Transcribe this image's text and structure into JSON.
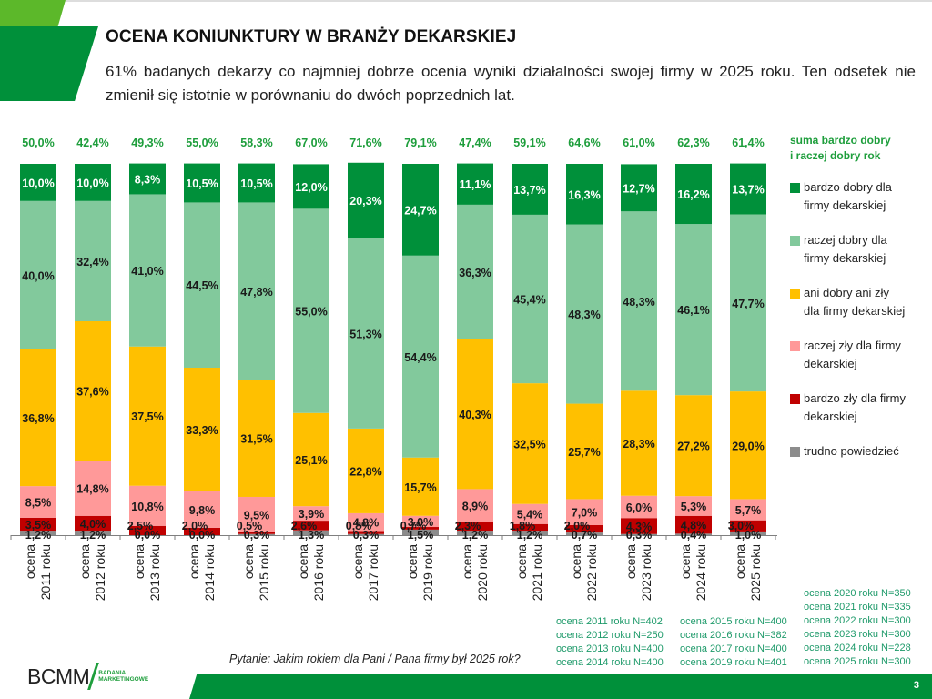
{
  "header": {
    "title": "OCENA KONIUNKTURY W BRANŻY DEKARSKIEJ",
    "subtitle": "61% badanych dekarzy co najmniej dobrze ocenia wyniki działalności swojej firmy w 2025 roku. Ten odsetek nie zmienił się istotnie w porównaniu do dwóch poprzednich lat."
  },
  "chart_data": {
    "type": "bar",
    "stacked": true,
    "orientation": "vertical",
    "unit": "%",
    "categories": [
      "ocena 2011 roku",
      "ocena 2012 roku",
      "ocena 2013 roku",
      "ocena 2014 roku",
      "ocena 2015 roku",
      "ocena 2016 roku",
      "ocena 2017 roku",
      "ocena 2019 roku",
      "ocena 2020 roku",
      "ocena 2021 roku",
      "ocena 2022 roku",
      "ocena 2023 roku",
      "ocena 2024 roku",
      "ocena 2025 roku"
    ],
    "category_lines": [
      [
        "ocena",
        "2011 roku"
      ],
      [
        "ocena",
        "2012 roku"
      ],
      [
        "ocena",
        "2013 roku"
      ],
      [
        "ocena",
        "2014 roku"
      ],
      [
        "ocena",
        "2015 roku"
      ],
      [
        "ocena",
        "2016 roku"
      ],
      [
        "ocena",
        "2017 roku"
      ],
      [
        "ocena",
        "2019 roku"
      ],
      [
        "ocena",
        "2020 roku"
      ],
      [
        "ocena",
        "2021 roku"
      ],
      [
        "ocena",
        "2022 roku"
      ],
      [
        "ocena",
        "2023 roku"
      ],
      [
        "ocena",
        "2024 roku"
      ],
      [
        "ocena",
        "2025 roku"
      ]
    ],
    "series_order_bottom_to_top": [
      "trudno powiedzieć",
      "bardzo zły dla firmy dekarskiej",
      "raczej zły dla firmy dekarskiej",
      "ani dobry ani zły dla firmy dekarskiej",
      "raczej dobry dla firmy dekarskiej",
      "bardzo dobry dla firmy dekarskiej"
    ],
    "series": [
      {
        "name": "bardzo dobry dla firmy dekarskiej",
        "color": "#00903a",
        "label_color": "#ffffff",
        "values": [
          10.0,
          10.0,
          8.3,
          10.5,
          10.5,
          12.0,
          20.3,
          24.7,
          11.1,
          13.7,
          16.3,
          12.7,
          16.2,
          13.7
        ],
        "labels": [
          "10,0%",
          "10,0%",
          "8,3%",
          "10,5%",
          "10,5%",
          "12,0%",
          "20,3%",
          "24,7%",
          "11,1%",
          "13,7%",
          "16,3%",
          "12,7%",
          "16,2%",
          "13,7%"
        ]
      },
      {
        "name": "raczej dobry dla firmy dekarskiej",
        "color": "#82c99c",
        "label_color": "#1a1a1a",
        "values": [
          40.0,
          32.4,
          41.0,
          44.5,
          47.8,
          55.0,
          51.3,
          54.4,
          36.3,
          45.4,
          48.3,
          48.3,
          46.1,
          47.7
        ],
        "labels": [
          "40,0%",
          "32,4%",
          "41,0%",
          "44,5%",
          "47,8%",
          "55,0%",
          "51,3%",
          "54,4%",
          "36,3%",
          "45,4%",
          "48,3%",
          "48,3%",
          "46,1%",
          "47,7%"
        ]
      },
      {
        "name": "ani dobry ani zły dla firmy dekarskiej",
        "color": "#ffc000",
        "label_color": "#1a1a1a",
        "values": [
          36.8,
          37.6,
          37.5,
          33.3,
          31.5,
          25.1,
          22.8,
          15.7,
          40.3,
          32.5,
          25.7,
          28.3,
          27.2,
          29.0
        ],
        "labels": [
          "36,8%",
          "37,6%",
          "37,5%",
          "33,3%",
          "31,5%",
          "25,1%",
          "22,8%",
          "15,7%",
          "40,3%",
          "32,5%",
          "25,7%",
          "28,3%",
          "27,2%",
          "29,0%"
        ]
      },
      {
        "name": "raczej zły dla firmy dekarskiej",
        "color": "#ff9999",
        "label_color": "#1a1a1a",
        "values": [
          8.5,
          14.8,
          10.8,
          9.8,
          9.5,
          3.9,
          4.8,
          3.0,
          8.9,
          5.4,
          7.0,
          6.0,
          5.3,
          5.7
        ],
        "labels": [
          "8,5%",
          "14,8%",
          "10,8%",
          "9,8%",
          "9,5%",
          "3,9%",
          "4,8%",
          "3,0%",
          "8,9%",
          "5,4%",
          "7,0%",
          "6,0%",
          "5,3%",
          "5,7%"
        ]
      },
      {
        "name": "bardzo zły dla firmy dekarskiej",
        "color": "#c00000",
        "label_color": "#1a1a1a",
        "values": [
          3.5,
          4.0,
          2.5,
          2.0,
          0.5,
          2.6,
          0.8,
          0.7,
          2.3,
          1.8,
          2.0,
          4.3,
          4.8,
          3.0
        ],
        "labels": [
          "3,5%",
          "4,0%",
          "2,5%",
          "2,0%",
          "0,5%",
          "2,6%",
          "0,8%",
          "0,7%",
          "2,3%",
          "1,8%",
          "2,0%",
          "4,3%",
          "4,8%",
          "3,0%"
        ]
      },
      {
        "name": "trudno powiedzieć",
        "color": "#8c8c8c",
        "label_color": "#1a1a1a",
        "values": [
          1.2,
          1.2,
          0.0,
          0.0,
          0.3,
          1.3,
          0.3,
          1.5,
          1.2,
          1.2,
          0.7,
          0.3,
          0.4,
          1.0
        ],
        "labels": [
          "1,2%",
          "1,2%",
          "0,0%",
          "0,0%",
          "0,3%",
          "1,3%",
          "0,3%",
          "1,5%",
          "1,2%",
          "1,2%",
          "0,7%",
          "0,3%",
          "0,4%",
          "1,0%"
        ]
      }
    ],
    "totals_label": "suma bardzo dobry i raczej dobry rok",
    "totals_label_lines": [
      "suma bardzo dobry",
      "i raczej dobry rok"
    ],
    "totals_color": "#1e9e3c",
    "totals": [
      50.0,
      42.4,
      49.3,
      55.0,
      58.3,
      67.0,
      71.6,
      79.1,
      47.4,
      59.1,
      64.6,
      61.0,
      62.3,
      61.4
    ],
    "totals_labels": [
      "50,0%",
      "42,4%",
      "49,3%",
      "55,0%",
      "58,3%",
      "67,0%",
      "71,6%",
      "79,1%",
      "47,4%",
      "59,1%",
      "64,6%",
      "61,0%",
      "62,3%",
      "61,4%"
    ],
    "ylim": [
      0,
      100
    ],
    "y_axis_visible": false,
    "grid": false,
    "legend_position": "right",
    "title": "",
    "xlabel": "",
    "ylabel": ""
  },
  "legend": {
    "items": [
      {
        "lines": [
          "bardzo dobry dla",
          "firmy dekarskiej"
        ],
        "color": "#00903a"
      },
      {
        "lines": [
          "raczej dobry dla",
          "firmy dekarskiej"
        ],
        "color": "#82c99c"
      },
      {
        "lines": [
          "ani dobry ani zły",
          "dla firmy dekarskiej"
        ],
        "color": "#ffc000"
      },
      {
        "lines": [
          "raczej zły dla firmy",
          "dekarskiej"
        ],
        "color": "#ff9999"
      },
      {
        "lines": [
          "bardzo zły dla firmy",
          "dekarskiej"
        ],
        "color": "#c00000"
      },
      {
        "lines": [
          "trudno powiedzieć"
        ],
        "color": "#8c8c8c"
      }
    ]
  },
  "sample_sizes": {
    "col1": [
      "ocena 2011 roku N=402",
      "ocena 2012 roku N=250",
      "ocena 2013 roku N=400",
      "ocena 2014 roku N=400"
    ],
    "col2": [
      "ocena 2015 roku N=400",
      "ocena 2016 roku N=382",
      "ocena 2017 roku N=400",
      "ocena 2019 roku N=401"
    ],
    "col3": [
      "ocena 2020 roku N=350",
      "ocena 2021 roku N=335",
      "ocena 2022 roku N=300",
      "ocena 2023 roku N=300",
      "ocena 2024 roku N=228",
      "ocena 2025 roku N=300"
    ]
  },
  "footer": {
    "question": "Pytanie: Jakim rokiem dla Pani / Pana firmy był 2025 rok?",
    "logo_text": "BCMM",
    "logo_sub_lines": [
      "BADANIA",
      "MARKETINGOWE"
    ],
    "page_number": "3"
  }
}
